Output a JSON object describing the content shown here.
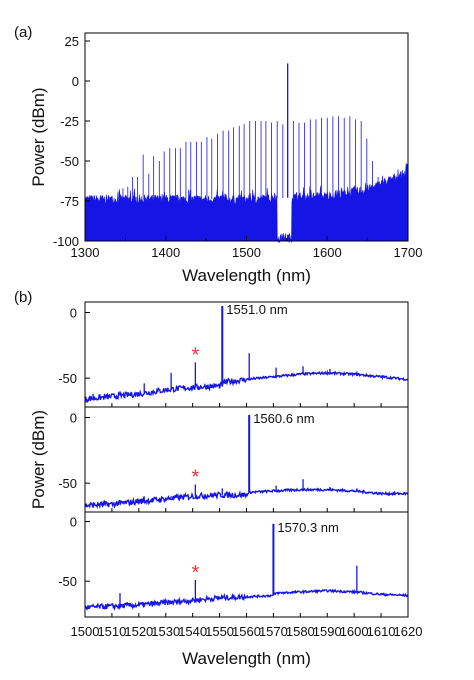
{
  "chart_data": [
    {
      "panel": "(a)",
      "type": "line",
      "xlabel": "Wavelength (nm)",
      "ylabel": "Power (dBm)",
      "xlim": [
        1300,
        1700
      ],
      "ylim": [
        -100,
        30
      ],
      "xticks": [
        1300,
        1400,
        1500,
        1600,
        1700
      ],
      "yticks": [
        25,
        0,
        -25,
        -50,
        -75,
        -100
      ],
      "color": "#1515e6",
      "floor": [
        [
          1300,
          -74
        ],
        [
          1400,
          -74
        ],
        [
          1500,
          -74
        ],
        [
          1600,
          -72
        ],
        [
          1650,
          -68
        ],
        [
          1700,
          -57
        ]
      ],
      "pump_notch": [
        1538,
        1556
      ],
      "peaks": [
        {
          "x": 1300,
          "y": -85
        },
        {
          "x": 1341,
          "y": -69
        },
        {
          "x": 1347,
          "y": -67
        },
        {
          "x": 1353,
          "y": -66
        },
        {
          "x": 1359,
          "y": -60
        },
        {
          "x": 1365,
          "y": -60
        },
        {
          "x": 1372,
          "y": -46
        },
        {
          "x": 1379,
          "y": -58
        },
        {
          "x": 1385,
          "y": -47
        },
        {
          "x": 1392,
          "y": -50
        },
        {
          "x": 1398,
          "y": -44
        },
        {
          "x": 1405,
          "y": -42
        },
        {
          "x": 1412,
          "y": -42
        },
        {
          "x": 1418,
          "y": -42
        },
        {
          "x": 1425,
          "y": -38
        },
        {
          "x": 1431,
          "y": -38
        },
        {
          "x": 1438,
          "y": -38
        },
        {
          "x": 1444,
          "y": -38
        },
        {
          "x": 1451,
          "y": -35
        },
        {
          "x": 1457,
          "y": -36
        },
        {
          "x": 1464,
          "y": -33
        },
        {
          "x": 1471,
          "y": -31
        },
        {
          "x": 1478,
          "y": -31
        },
        {
          "x": 1484,
          "y": -29
        },
        {
          "x": 1491,
          "y": -28
        },
        {
          "x": 1497,
          "y": -27
        },
        {
          "x": 1504,
          "y": -25
        },
        {
          "x": 1511,
          "y": -25
        },
        {
          "x": 1518,
          "y": -25
        },
        {
          "x": 1524,
          "y": -25
        },
        {
          "x": 1531,
          "y": -26
        },
        {
          "x": 1538,
          "y": -25
        },
        {
          "x": 1545,
          "y": -27
        },
        {
          "x": 1551,
          "y": 11
        },
        {
          "x": 1558,
          "y": -25
        },
        {
          "x": 1565,
          "y": -26
        },
        {
          "x": 1572,
          "y": -26
        },
        {
          "x": 1579,
          "y": -24
        },
        {
          "x": 1586,
          "y": -24
        },
        {
          "x": 1593,
          "y": -23
        },
        {
          "x": 1600,
          "y": -23
        },
        {
          "x": 1607,
          "y": -22
        },
        {
          "x": 1614,
          "y": -22
        },
        {
          "x": 1621,
          "y": -23
        },
        {
          "x": 1628,
          "y": -22
        },
        {
          "x": 1635,
          "y": -24
        },
        {
          "x": 1642,
          "y": -25
        },
        {
          "x": 1649,
          "y": -36
        },
        {
          "x": 1656,
          "y": -50
        },
        {
          "x": 1663,
          "y": -60
        }
      ]
    },
    {
      "panel": "(b)",
      "type": "line",
      "xlabel": "Wavelength (nm)",
      "ylabel": "Power (dBm)",
      "xlim": [
        1500,
        1620
      ],
      "xticks": [
        1500,
        1510,
        1520,
        1530,
        1540,
        1550,
        1560,
        1570,
        1580,
        1590,
        1600,
        1610,
        1620
      ],
      "color": "#1515e6",
      "subplots": [
        {
          "ylim": [
            -72,
            8
          ],
          "yticks": [
            0,
            -50
          ],
          "annotation": "1551.0 nm",
          "marker": "*",
          "marker_x": 1541,
          "baseline": [
            [
              1500,
              -66
            ],
            [
              1510,
              -64
            ],
            [
              1520,
              -62
            ],
            [
              1530,
              -59
            ],
            [
              1540,
              -57
            ],
            [
              1550,
              -56
            ],
            [
              1551,
              -55
            ],
            [
              1552,
              -53
            ],
            [
              1560,
              -51
            ],
            [
              1570,
              -49
            ],
            [
              1580,
              -47
            ],
            [
              1590,
              -46
            ],
            [
              1600,
              -47
            ],
            [
              1610,
              -49
            ],
            [
              1620,
              -51
            ]
          ],
          "peaks": [
            {
              "x": 1503,
              "y": -62
            },
            {
              "x": 1513,
              "y": -60
            },
            {
              "x": 1522,
              "y": -54
            },
            {
              "x": 1532,
              "y": -46
            },
            {
              "x": 1541,
              "y": -38
            },
            {
              "x": 1551,
              "y": 5
            },
            {
              "x": 1561,
              "y": -31
            },
            {
              "x": 1571,
              "y": -42
            },
            {
              "x": 1581,
              "y": -41
            },
            {
              "x": 1591,
              "y": -43
            },
            {
              "x": 1601,
              "y": -45
            },
            {
              "x": 1611,
              "y": -48
            }
          ]
        },
        {
          "ylim": [
            -72,
            8
          ],
          "yticks": [
            0,
            -50
          ],
          "annotation": "1560.6 nm",
          "marker": "*",
          "marker_x": 1541,
          "baseline": [
            [
              1500,
              -67
            ],
            [
              1510,
              -66
            ],
            [
              1520,
              -64
            ],
            [
              1530,
              -62
            ],
            [
              1540,
              -60
            ],
            [
              1550,
              -59
            ],
            [
              1560,
              -59
            ],
            [
              1561,
              -57
            ],
            [
              1570,
              -56
            ],
            [
              1580,
              -55
            ],
            [
              1590,
              -55
            ],
            [
              1600,
              -56
            ],
            [
              1610,
              -58
            ],
            [
              1620,
              -58
            ]
          ],
          "peaks": [
            {
              "x": 1503,
              "y": -66
            },
            {
              "x": 1513,
              "y": -64
            },
            {
              "x": 1522,
              "y": -60
            },
            {
              "x": 1532,
              "y": -60
            },
            {
              "x": 1541,
              "y": -51
            },
            {
              "x": 1551,
              "y": -54
            },
            {
              "x": 1561,
              "y": 2
            },
            {
              "x": 1571,
              "y": -52
            },
            {
              "x": 1581,
              "y": -47
            },
            {
              "x": 1591,
              "y": -53
            },
            {
              "x": 1601,
              "y": -54
            }
          ]
        },
        {
          "ylim": [
            -80,
            8
          ],
          "yticks": [
            0,
            -50
          ],
          "annotation": "1570.3 nm",
          "marker": "*",
          "marker_x": 1541,
          "baseline": [
            [
              1500,
              -72
            ],
            [
              1510,
              -71
            ],
            [
              1520,
              -70
            ],
            [
              1530,
              -68
            ],
            [
              1540,
              -66
            ],
            [
              1550,
              -64
            ],
            [
              1560,
              -63
            ],
            [
              1570,
              -62
            ],
            [
              1571,
              -60
            ],
            [
              1580,
              -59
            ],
            [
              1590,
              -58
            ],
            [
              1600,
              -59
            ],
            [
              1610,
              -61
            ],
            [
              1620,
              -62
            ]
          ],
          "peaks": [
            {
              "x": 1513,
              "y": -60
            },
            {
              "x": 1522,
              "y": -68
            },
            {
              "x": 1541,
              "y": -49
            },
            {
              "x": 1551,
              "y": -62
            },
            {
              "x": 1570,
              "y": -2
            },
            {
              "x": 1601,
              "y": -37
            }
          ]
        }
      ]
    }
  ]
}
